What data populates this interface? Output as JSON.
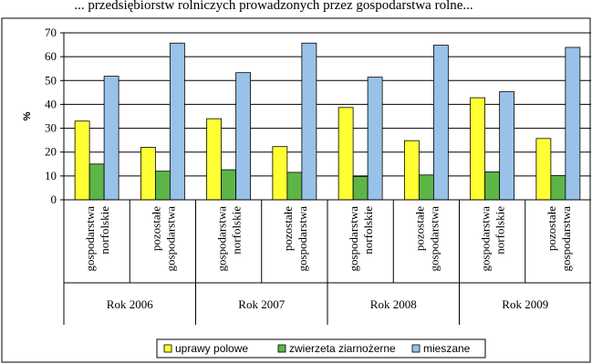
{
  "header_fragment": "... przedsiębiorstw rolniczych prowadzonych przez gospodarstwa rolne...",
  "chart_data": {
    "type": "bar",
    "ylabel": "%",
    "ylim": [
      0,
      70
    ],
    "yticks": [
      0,
      10,
      20,
      30,
      40,
      50,
      60,
      70
    ],
    "grid": true,
    "legend_position": "bottom",
    "categories": [
      {
        "line1": "gospodarstwa",
        "line2": "norfolskie",
        "group": "Rok 2006"
      },
      {
        "line1": "pozostałe",
        "line2": "gospodarstwa",
        "group": "Rok 2006"
      },
      {
        "line1": "gospodarstwa",
        "line2": "norfolskie",
        "group": "Rok 2007"
      },
      {
        "line1": "pozostałe",
        "line2": "gospodarstwa",
        "group": "Rok 2007"
      },
      {
        "line1": "gospodarstwa",
        "line2": "norfolskie",
        "group": "Rok 2008"
      },
      {
        "line1": "pozostałe",
        "line2": "gospodarstwa",
        "group": "Rok 2008"
      },
      {
        "line1": "gospodarstwa",
        "line2": "norfolskie",
        "group": "Rok 2009"
      },
      {
        "line1": "pozostałe",
        "line2": "gospodarstwa",
        "group": "Rok 2009"
      }
    ],
    "groups": [
      "Rok 2006",
      "Rok 2007",
      "Rok 2008",
      "Rok 2009"
    ],
    "series": [
      {
        "name": "uprawy polowe",
        "color": "#ffff33",
        "values": [
          33,
          22,
          34,
          22.3,
          38.7,
          24.8,
          42.8,
          25.7
        ]
      },
      {
        "name": "zwierzeta ziarnożerne",
        "color": "#5db548",
        "values": [
          15,
          12,
          12.6,
          11.5,
          9.8,
          10.4,
          11.7,
          10.2
        ]
      },
      {
        "name": "mieszane",
        "color": "#99c2e8",
        "values": [
          51.8,
          65.7,
          53.3,
          65.7,
          51.4,
          64.8,
          45.3,
          63.9
        ]
      }
    ]
  }
}
